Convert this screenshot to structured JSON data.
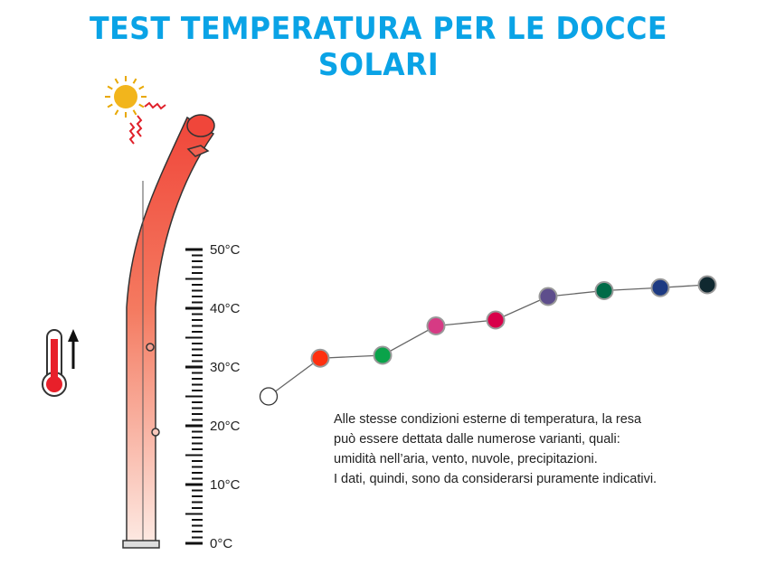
{
  "title": "TEST TEMPERATURA PER LE DOCCE SOLARI",
  "note_lines": [
    "Alle stesse condizioni esterne di temperatura, la resa",
    "può essere dettata dalle numerose varianti, quali:",
    "umidità nell’aria, vento, nuvole, precipitazioni.",
    "I dati, quindi, sono da considerarsi puramente indicativi."
  ],
  "icons": [
    "sun-icon",
    "heat-waves-icon",
    "solar-shower-illustration",
    "thermometer-icon",
    "arrow-up-icon"
  ],
  "chart_data": {
    "type": "line",
    "ylim": [
      0,
      50
    ],
    "y_ticks": [
      "0°C",
      "10°C",
      "20°C",
      "30°C",
      "40°C",
      "50°C"
    ],
    "x": [
      1,
      2,
      3,
      4,
      5,
      6,
      7,
      8,
      9
    ],
    "values": [
      25,
      31.5,
      32,
      37,
      38,
      42,
      43,
      43.5,
      44
    ],
    "point_colors": [
      "#ffffff",
      "#ff3010",
      "#0aa34a",
      "#d63a84",
      "#d8004a",
      "#5e4e8c",
      "#006b48",
      "#1d3a82",
      "#102830"
    ],
    "grid": false
  }
}
